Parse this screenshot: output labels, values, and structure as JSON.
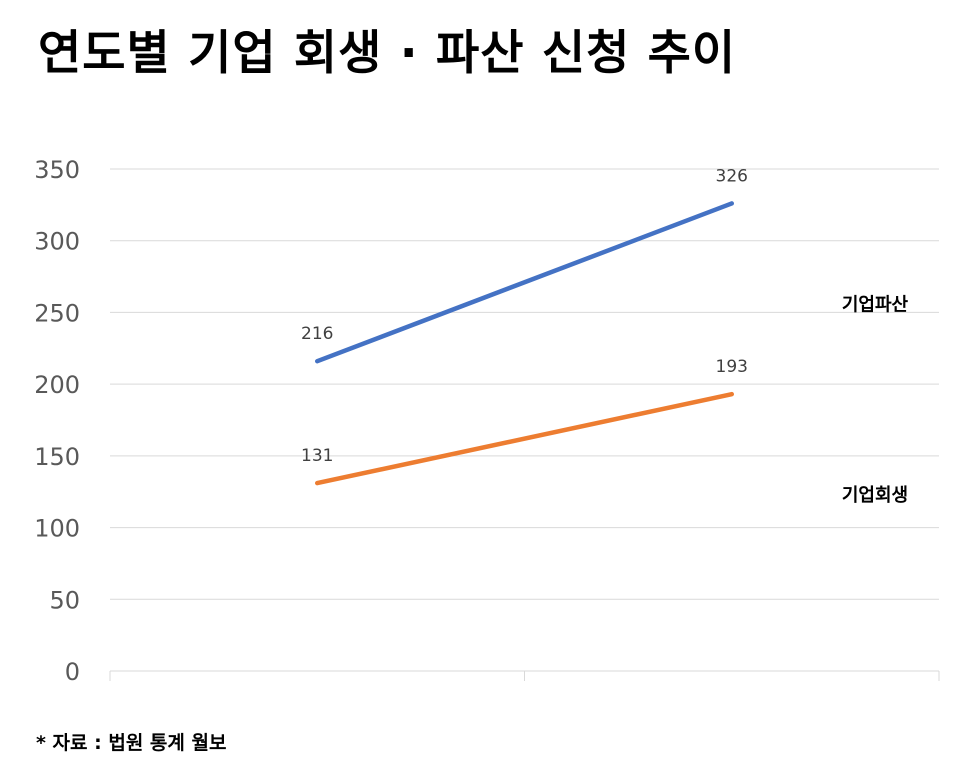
{
  "title": "연도별 기업 회생 · 파산 신청 추이",
  "source": "* 자료 : 법원 통계 월보",
  "chart_data": {
    "type": "line",
    "categories": [
      "",
      ""
    ],
    "ylim": [
      0,
      350
    ],
    "yticks": [
      0,
      50,
      100,
      150,
      200,
      250,
      300,
      350
    ],
    "grid": true,
    "legend": "right",
    "series": [
      {
        "name": "기업파산",
        "values": [
          216,
          326
        ],
        "color": "#4472C4"
      },
      {
        "name": "기업회생",
        "values": [
          131,
          193
        ],
        "color": "#ED7D31"
      }
    ]
  }
}
